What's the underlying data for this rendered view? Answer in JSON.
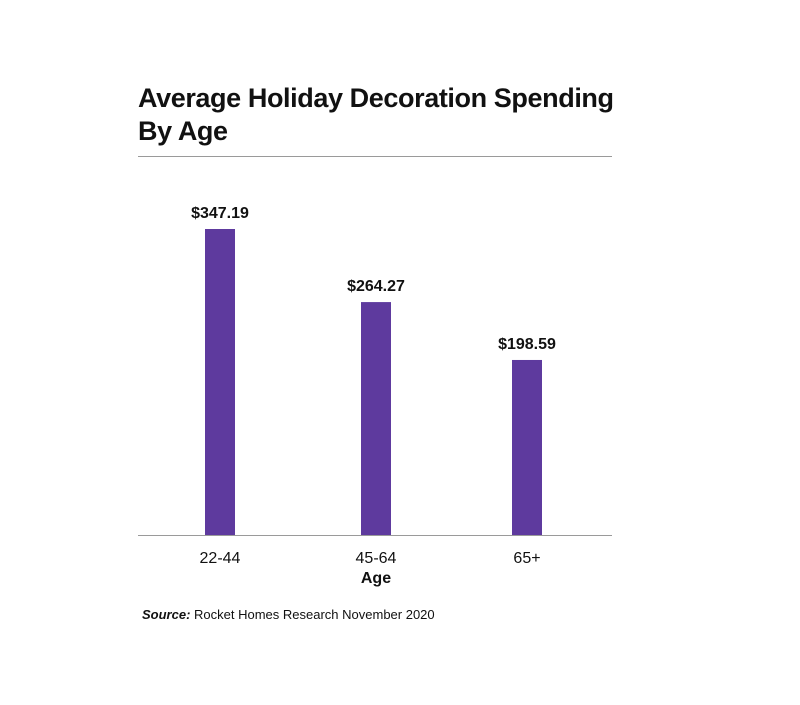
{
  "colors": {
    "bar": "#5e3a9e",
    "axis": "#9a9a9a",
    "text": "#111111"
  },
  "source": {
    "label": "Source:",
    "text": "Rocket Homes Research November 2020"
  },
  "chart_data": {
    "type": "bar",
    "title": "Average Holiday Decoration Spending By Age",
    "title_lines": [
      "Average Holiday Decoration Spending",
      "By Age"
    ],
    "xlabel": "Age",
    "ylabel": "",
    "categories": [
      "22-44",
      "45-64",
      "65+"
    ],
    "values": [
      347.19,
      264.27,
      198.59
    ],
    "data_labels": [
      "$347.19",
      "$264.27",
      "$198.59"
    ],
    "ylim": [
      0,
      347.19
    ],
    "grid": false,
    "legend": "none"
  }
}
